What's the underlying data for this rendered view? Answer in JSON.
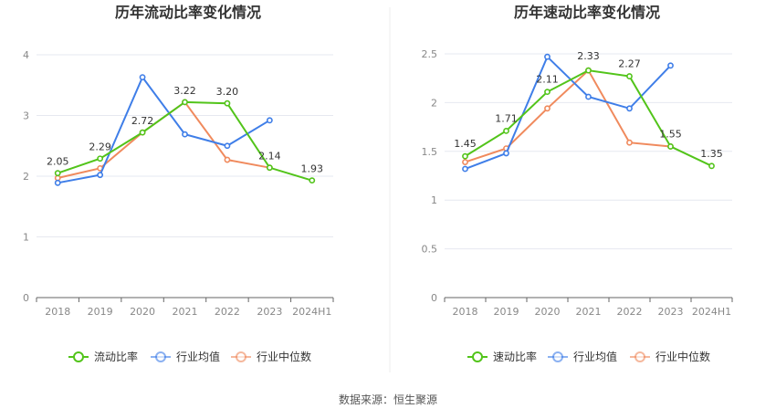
{
  "colors": {
    "company": "#52c41a",
    "industry_avg": "#3f7ee8",
    "industry_median": "#f08a5d",
    "grid": "#e6e8f0",
    "axis": "#666666"
  },
  "source": "数据来源：恒生聚源",
  "chart_data": [
    {
      "type": "line",
      "title": "历年流动比率变化情况",
      "categories": [
        "2018",
        "2019",
        "2020",
        "2021",
        "2022",
        "2023",
        "2024H1"
      ],
      "ylim": [
        0,
        4
      ],
      "yticks": [
        0,
        1,
        2,
        3,
        4
      ],
      "grid": true,
      "legend_position": "bottom",
      "series": [
        {
          "name": "流动比率",
          "color_key": "company",
          "labeled": true,
          "values": [
            2.05,
            2.29,
            2.72,
            3.22,
            3.2,
            2.14,
            1.93
          ],
          "labels": [
            "2.05",
            "2.29",
            "2.72",
            "3.22",
            "3.20",
            "2.14",
            "1.93"
          ]
        },
        {
          "name": "行业均值",
          "color_key": "industry_avg",
          "values": [
            1.89,
            2.02,
            3.63,
            2.69,
            2.5,
            2.92,
            null
          ]
        },
        {
          "name": "行业中位数",
          "color_key": "industry_median",
          "values": [
            1.97,
            2.13,
            2.72,
            3.22,
            2.27,
            2.14,
            null
          ]
        }
      ]
    },
    {
      "type": "line",
      "title": "历年速动比率变化情况",
      "categories": [
        "2018",
        "2019",
        "2020",
        "2021",
        "2022",
        "2023",
        "2024H1"
      ],
      "ylim": [
        0,
        2.5
      ],
      "yticks": [
        0,
        0.5,
        1,
        1.5,
        2,
        2.5
      ],
      "grid": true,
      "legend_position": "bottom",
      "series": [
        {
          "name": "速动比率",
          "color_key": "company",
          "labeled": true,
          "values": [
            1.45,
            1.71,
            2.11,
            2.33,
            2.27,
            1.55,
            1.35
          ],
          "labels": [
            "1.45",
            "1.71",
            "2.11",
            "2.33",
            "2.27",
            "1.55",
            "1.35"
          ]
        },
        {
          "name": "行业均值",
          "color_key": "industry_avg",
          "values": [
            1.32,
            1.48,
            2.47,
            2.06,
            1.94,
            2.38,
            null
          ]
        },
        {
          "name": "行业中位数",
          "color_key": "industry_median",
          "values": [
            1.39,
            1.53,
            1.94,
            2.33,
            1.59,
            1.55,
            null
          ]
        }
      ]
    }
  ]
}
